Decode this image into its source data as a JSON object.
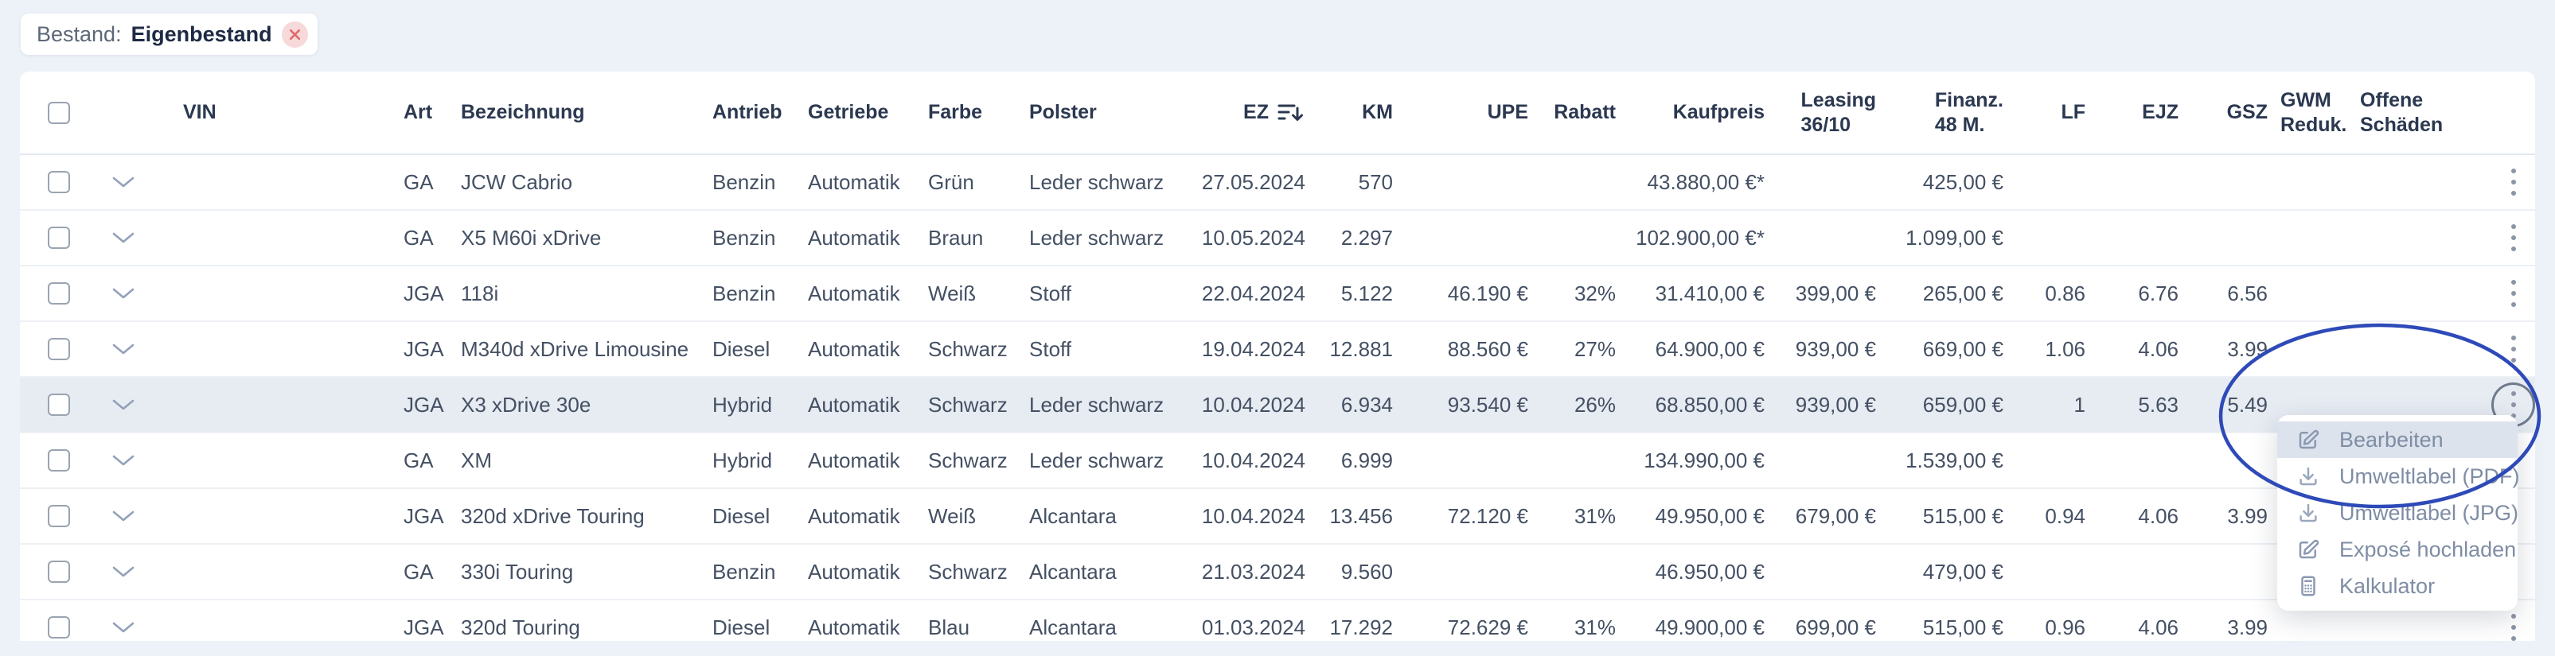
{
  "filter_chip": {
    "label": "Bestand:",
    "value": "Eigenbestand",
    "close_icon": "close-icon"
  },
  "table": {
    "columns": [
      {
        "id": "vin",
        "label": "VIN"
      },
      {
        "id": "art",
        "label": "Art"
      },
      {
        "id": "bezeichnung",
        "label": "Bezeichnung"
      },
      {
        "id": "antrieb",
        "label": "Antrieb"
      },
      {
        "id": "getriebe",
        "label": "Getriebe"
      },
      {
        "id": "farbe",
        "label": "Farbe"
      },
      {
        "id": "polster",
        "label": "Polster"
      },
      {
        "id": "ez",
        "label": "EZ",
        "sorted": "desc",
        "icon": "sort-descending-icon"
      },
      {
        "id": "km",
        "label": "KM"
      },
      {
        "id": "upe",
        "label": "UPE"
      },
      {
        "id": "rabatt",
        "label": "Rabatt"
      },
      {
        "id": "kaufpreis",
        "label": "Kaufpreis"
      },
      {
        "id": "leasing",
        "label": "Leasing",
        "label2": "36/10"
      },
      {
        "id": "finanz",
        "label": "Finanz.",
        "label2": "48 M."
      },
      {
        "id": "lf",
        "label": "LF"
      },
      {
        "id": "ejz",
        "label": "EJZ"
      },
      {
        "id": "gsz",
        "label": "GSZ"
      },
      {
        "id": "gwm",
        "label": "GWM",
        "label2": "Reduk."
      },
      {
        "id": "schaeden",
        "label": "Offene",
        "label2": "Schäden"
      }
    ],
    "rows": [
      {
        "vin": "",
        "art": "GA",
        "bezeichnung": "JCW Cabrio",
        "antrieb": "Benzin",
        "getriebe": "Automatik",
        "farbe": "Grün",
        "polster": "Leder schwarz",
        "ez": "27.05.2024",
        "km": "570",
        "upe": "",
        "rabatt": "",
        "kaufpreis": "43.880,00 €*",
        "leasing": "",
        "finanz": "425,00 €",
        "lf": "",
        "ejz": "",
        "gsz": "",
        "gwm": "",
        "schaeden": "",
        "highlighted": false
      },
      {
        "vin": "",
        "art": "GA",
        "bezeichnung": "X5 M60i xDrive",
        "antrieb": "Benzin",
        "getriebe": "Automatik",
        "farbe": "Braun",
        "polster": "Leder schwarz",
        "ez": "10.05.2024",
        "km": "2.297",
        "upe": "",
        "rabatt": "",
        "kaufpreis": "102.900,00 €*",
        "leasing": "",
        "finanz": "1.099,00 €",
        "lf": "",
        "ejz": "",
        "gsz": "",
        "gwm": "",
        "schaeden": "",
        "highlighted": false
      },
      {
        "vin": "",
        "art": "JGA",
        "bezeichnung": "118i",
        "antrieb": "Benzin",
        "getriebe": "Automatik",
        "farbe": "Weiß",
        "polster": "Stoff",
        "ez": "22.04.2024",
        "km": "5.122",
        "upe": "46.190 €",
        "rabatt": "32%",
        "kaufpreis": "31.410,00 €",
        "leasing": "399,00 €",
        "finanz": "265,00 €",
        "lf": "0.86",
        "ejz": "6.76",
        "gsz": "6.56",
        "gwm": "",
        "schaeden": "",
        "highlighted": false
      },
      {
        "vin": "",
        "art": "JGA",
        "bezeichnung": "M340d xDrive Limousine",
        "antrieb": "Diesel",
        "getriebe": "Automatik",
        "farbe": "Schwarz",
        "polster": "Stoff",
        "ez": "19.04.2024",
        "km": "12.881",
        "upe": "88.560 €",
        "rabatt": "27%",
        "kaufpreis": "64.900,00 €",
        "leasing": "939,00 €",
        "finanz": "669,00 €",
        "lf": "1.06",
        "ejz": "4.06",
        "gsz": "3.99",
        "gwm": "",
        "schaeden": "",
        "highlighted": false
      },
      {
        "vin": "",
        "art": "JGA",
        "bezeichnung": "X3 xDrive 30e",
        "antrieb": "Hybrid",
        "getriebe": "Automatik",
        "farbe": "Schwarz",
        "polster": "Leder schwarz",
        "ez": "10.04.2024",
        "km": "6.934",
        "upe": "93.540 €",
        "rabatt": "26%",
        "kaufpreis": "68.850,00 €",
        "leasing": "939,00 €",
        "finanz": "659,00 €",
        "lf": "1",
        "ejz": "5.63",
        "gsz": "5.49",
        "gwm": "",
        "schaeden": "",
        "highlighted": true
      },
      {
        "vin": "",
        "art": "GA",
        "bezeichnung": "XM",
        "antrieb": "Hybrid",
        "getriebe": "Automatik",
        "farbe": "Schwarz",
        "polster": "Leder schwarz",
        "ez": "10.04.2024",
        "km": "6.999",
        "upe": "",
        "rabatt": "",
        "kaufpreis": "134.990,00 €",
        "leasing": "",
        "finanz": "1.539,00 €",
        "lf": "",
        "ejz": "",
        "gsz": "",
        "gwm": "",
        "schaeden": "",
        "highlighted": false
      },
      {
        "vin": "",
        "art": "JGA",
        "bezeichnung": "320d xDrive Touring",
        "antrieb": "Diesel",
        "getriebe": "Automatik",
        "farbe": "Weiß",
        "polster": "Alcantara",
        "ez": "10.04.2024",
        "km": "13.456",
        "upe": "72.120 €",
        "rabatt": "31%",
        "kaufpreis": "49.950,00 €",
        "leasing": "679,00 €",
        "finanz": "515,00 €",
        "lf": "0.94",
        "ejz": "4.06",
        "gsz": "3.99",
        "gwm": "",
        "schaeden": "",
        "highlighted": false
      },
      {
        "vin": "",
        "art": "GA",
        "bezeichnung": "330i Touring",
        "antrieb": "Benzin",
        "getriebe": "Automatik",
        "farbe": "Schwarz",
        "polster": "Alcantara",
        "ez": "21.03.2024",
        "km": "9.560",
        "upe": "",
        "rabatt": "",
        "kaufpreis": "46.950,00 €",
        "leasing": "",
        "finanz": "479,00 €",
        "lf": "",
        "ejz": "",
        "gsz": "",
        "gwm": "",
        "schaeden": "",
        "highlighted": false
      },
      {
        "vin": "",
        "art": "JGA",
        "bezeichnung": "320d Touring",
        "antrieb": "Diesel",
        "getriebe": "Automatik",
        "farbe": "Blau",
        "polster": "Alcantara",
        "ez": "01.03.2024",
        "km": "17.292",
        "upe": "72.629 €",
        "rabatt": "31%",
        "kaufpreis": "49.900,00 €",
        "leasing": "699,00 €",
        "finanz": "515,00 €",
        "lf": "0.96",
        "ejz": "4.06",
        "gsz": "3.99",
        "gwm": "",
        "schaeden": "",
        "highlighted": false
      }
    ]
  },
  "context_menu": {
    "items": [
      {
        "label": "Bearbeiten",
        "icon": "edit-icon",
        "active": true
      },
      {
        "label": "Umweltlabel (PDF)",
        "icon": "download-icon",
        "active": false
      },
      {
        "label": "Umweltlabel (JPG)",
        "icon": "download-icon",
        "active": false
      },
      {
        "label": "Exposé hochladen",
        "icon": "edit-icon",
        "active": false
      },
      {
        "label": "Kalkulator",
        "icon": "calculator-icon",
        "active": false
      }
    ]
  },
  "annotation": {
    "shape": "ellipse",
    "color": "#2e4ab8"
  },
  "colors": {
    "page_background": "#edf1f8",
    "row_highlight": "#e7ebf2",
    "menu_active_background": "#dde3ed",
    "header_text": "#2b3850",
    "chip_close_background": "#f7d9d9",
    "chip_close_x": "#dd6b6b"
  }
}
